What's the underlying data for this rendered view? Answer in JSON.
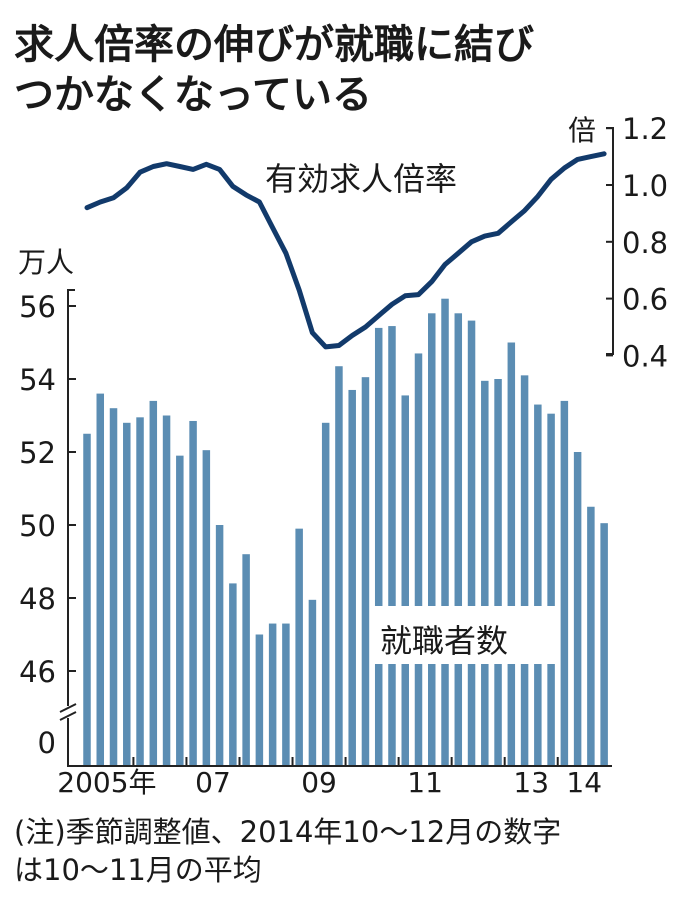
{
  "chart_data": {
    "type": "bar+line",
    "title": [
      "求人倍率の伸びが就職に結び",
      "つかなくなっている"
    ],
    "left_axis": {
      "unit": "万人",
      "ticks": [
        "56",
        "54",
        "52",
        "50",
        "48",
        "46",
        "0"
      ],
      "range": [
        46,
        56
      ],
      "break": true
    },
    "right_axis": {
      "unit": "倍",
      "ticks": [
        "1.2",
        "1.0",
        "0.8",
        "0.6",
        "0.4"
      ],
      "range": [
        0.4,
        1.2
      ]
    },
    "x_tick_labels": [
      "2005年",
      "07",
      "09",
      "11",
      "13",
      "14"
    ],
    "x_label_years": [
      2005,
      2007,
      2009,
      2011,
      2013,
      2014
    ],
    "start_year": 2005,
    "periods": "quarterly 2005Q1–2014Q4",
    "series": [
      {
        "name": "就職者数",
        "type": "bar",
        "axis": "left",
        "color": "#5b8db3",
        "values": [
          52.5,
          53.6,
          53.2,
          52.8,
          52.95,
          53.4,
          53.0,
          51.9,
          52.85,
          52.05,
          50.0,
          48.4,
          49.2,
          47.0,
          47.3,
          47.3,
          49.9,
          47.95,
          52.8,
          54.35,
          53.7,
          54.05,
          55.4,
          55.45,
          53.55,
          54.7,
          55.8,
          56.2,
          55.8,
          55.6,
          53.95,
          54.0,
          55.0,
          54.1,
          53.3,
          53.05,
          53.4,
          52.0,
          50.5,
          50.05
        ]
      },
      {
        "name": "有効求人倍率",
        "type": "line",
        "axis": "right",
        "color": "#123a6b",
        "values": [
          0.92,
          0.94,
          0.955,
          0.99,
          1.045,
          1.065,
          1.075,
          1.065,
          1.055,
          1.073,
          1.055,
          0.995,
          0.965,
          0.94,
          0.85,
          0.76,
          0.63,
          0.48,
          0.43,
          0.435,
          0.47,
          0.5,
          0.54,
          0.58,
          0.61,
          0.614,
          0.66,
          0.72,
          0.76,
          0.8,
          0.82,
          0.83,
          0.87,
          0.91,
          0.96,
          1.02,
          1.06,
          1.09,
          1.1,
          1.11
        ]
      }
    ],
    "note": [
      "(注)季節調整値、2014年10～12月の数字",
      "は10～11月の平均"
    ]
  }
}
